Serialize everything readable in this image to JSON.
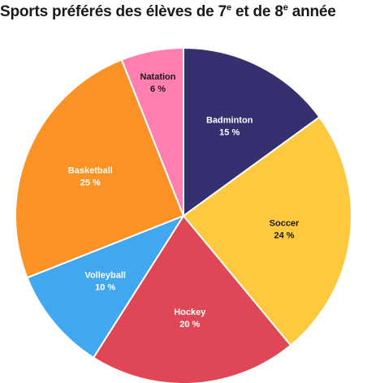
{
  "title": {
    "part1": "Sports préférés des élèves de 7",
    "sup1": "e",
    "part2": " et de 8",
    "sup2": "e",
    "part3": " année"
  },
  "chart_data": {
    "type": "pie",
    "title": "Sports préférés des élèves de 7e et de 8e année",
    "start": "top",
    "direction": "clockwise",
    "slices": [
      {
        "label": "Badminton",
        "value": 15,
        "value_label": "15 %",
        "color": "#35306f",
        "text_color": "#ffffff"
      },
      {
        "label": "Soccer",
        "value": 24,
        "value_label": "24 %",
        "color": "#ffc93f",
        "text_color": "#1a1a1a"
      },
      {
        "label": "Hockey",
        "value": 20,
        "value_label": "20 %",
        "color": "#e04756",
        "text_color": "#ffffff"
      },
      {
        "label": "Volleyball",
        "value": 10,
        "value_label": "10 %",
        "color": "#41a8f0",
        "text_color": "#ffffff"
      },
      {
        "label": "Basketball",
        "value": 25,
        "value_label": "25 %",
        "color": "#fb9225",
        "text_color": "#ffffff"
      },
      {
        "label": "Natation",
        "value": 6,
        "value_label": "6 %",
        "color": "#ff7fb0",
        "text_color": "#1a1a1a"
      }
    ]
  }
}
